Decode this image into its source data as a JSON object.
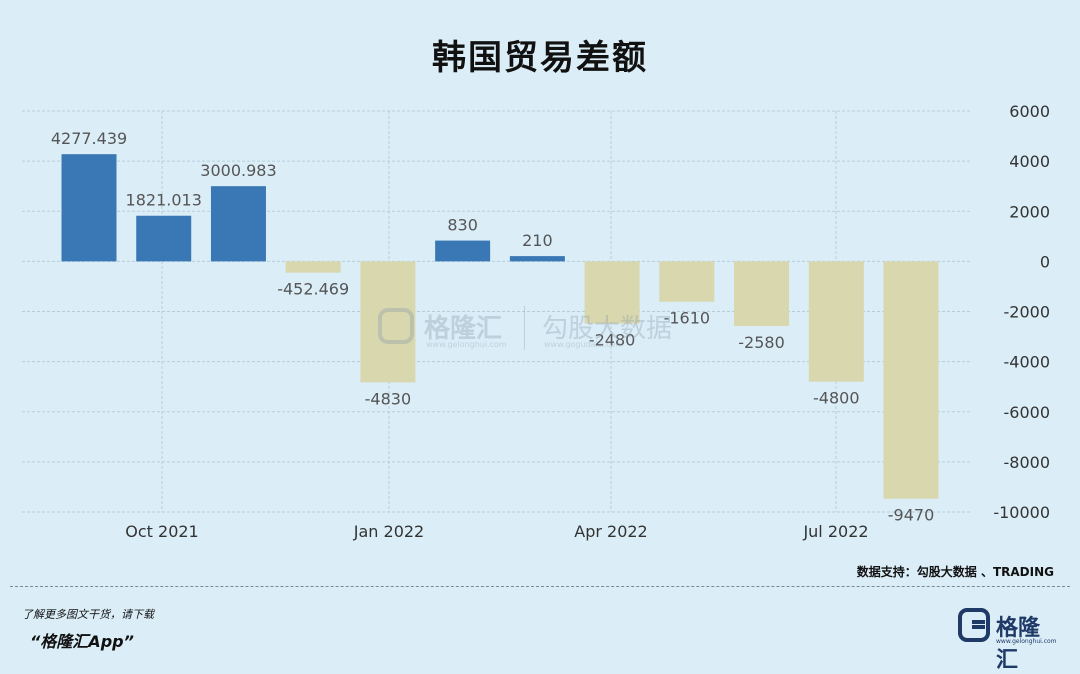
{
  "title": "韩国贸易差额",
  "chart_data": {
    "type": "bar",
    "values": [
      4277.439,
      1821.013,
      3000.983,
      -452.469,
      -4830,
      830,
      210,
      -2480,
      -1610,
      -2580,
      -4800,
      -9470
    ],
    "data_labels": [
      "4277.439",
      "1821.013",
      "3000.983",
      "-452.469",
      "-4830",
      "830",
      "210",
      "-2480",
      "-1610",
      "-2580",
      "-4800",
      "-9470"
    ],
    "x_ticks": [
      "Oct 2021",
      "Jan 2022",
      "Apr 2022",
      "Jul 2022"
    ],
    "y_ticks": [
      6000,
      4000,
      2000,
      0,
      -2000,
      -4000,
      -6000,
      -8000,
      -10000
    ],
    "ylim": [
      -10000,
      6000
    ],
    "y_axis_side": "right",
    "grid": true,
    "colors": {
      "positive": "#3a78b5",
      "negative": "#d8d7ae"
    }
  },
  "watermark": {
    "brand": "格隆汇",
    "brand_sub": "www.gelonghui.com",
    "product": "勾股大数据",
    "product_sub": "www.gogudata.com"
  },
  "source": "数据支持：勾股大数据 、TRADING",
  "promo": {
    "line1": "了解更多图文干货，请下载",
    "line2": "“格隆汇App”"
  },
  "logo": {
    "text": "格隆汇",
    "sub": "www.gelonghui.com"
  }
}
